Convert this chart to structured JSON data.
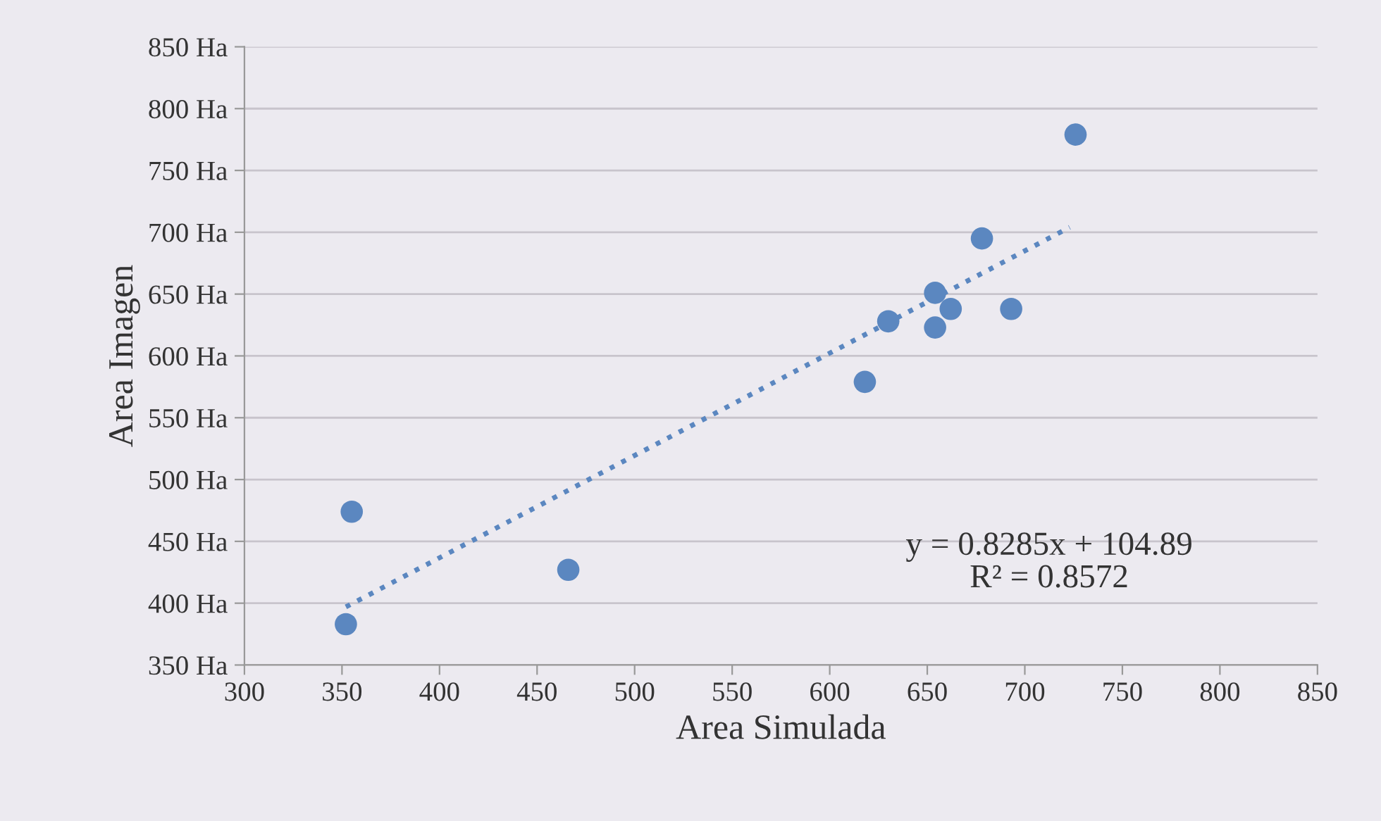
{
  "chart_data": {
    "type": "scatter",
    "xlabel": "Area Simulada",
    "ylabel": "Area Imagen",
    "series": [
      {
        "color": "#5b87c0",
        "x": [
          352,
          355,
          466,
          618,
          630,
          654,
          654,
          662,
          678,
          693,
          726
        ],
        "values": [
          383,
          474,
          427,
          579,
          628,
          651,
          623,
          638,
          695,
          638,
          779
        ],
        "marker": "circle"
      },
      {
        "type": "line",
        "color": "#5b87c0",
        "x": [
          352,
          723
        ],
        "values": [
          397,
          704
        ],
        "line_style": "dotted",
        "marker": "none"
      }
    ],
    "annotations": [
      "y = 0.8285x + 104.89\nR² = 0.8572"
    ],
    "xlim": [
      300,
      850
    ],
    "xticks": [
      300,
      350,
      400,
      450,
      500,
      550,
      600,
      650,
      700,
      750,
      800,
      850
    ],
    "ylim": [
      350,
      850
    ],
    "yticks": [
      {
        "value": 350,
        "label": "350 Ha"
      },
      {
        "value": 400,
        "label": "400 Ha"
      },
      {
        "value": 450,
        "label": "450 Ha"
      },
      {
        "value": 500,
        "label": "500 Ha"
      },
      {
        "value": 550,
        "label": "550 Ha"
      },
      {
        "value": 600,
        "label": "600 Ha"
      },
      {
        "value": 650,
        "label": "650 Ha"
      },
      {
        "value": 700,
        "label": "700 Ha"
      },
      {
        "value": 750,
        "label": "750 Ha"
      },
      {
        "value": 800,
        "label": "800 Ha"
      },
      {
        "value": 850,
        "label": "850 Ha"
      }
    ],
    "grid": "y"
  }
}
